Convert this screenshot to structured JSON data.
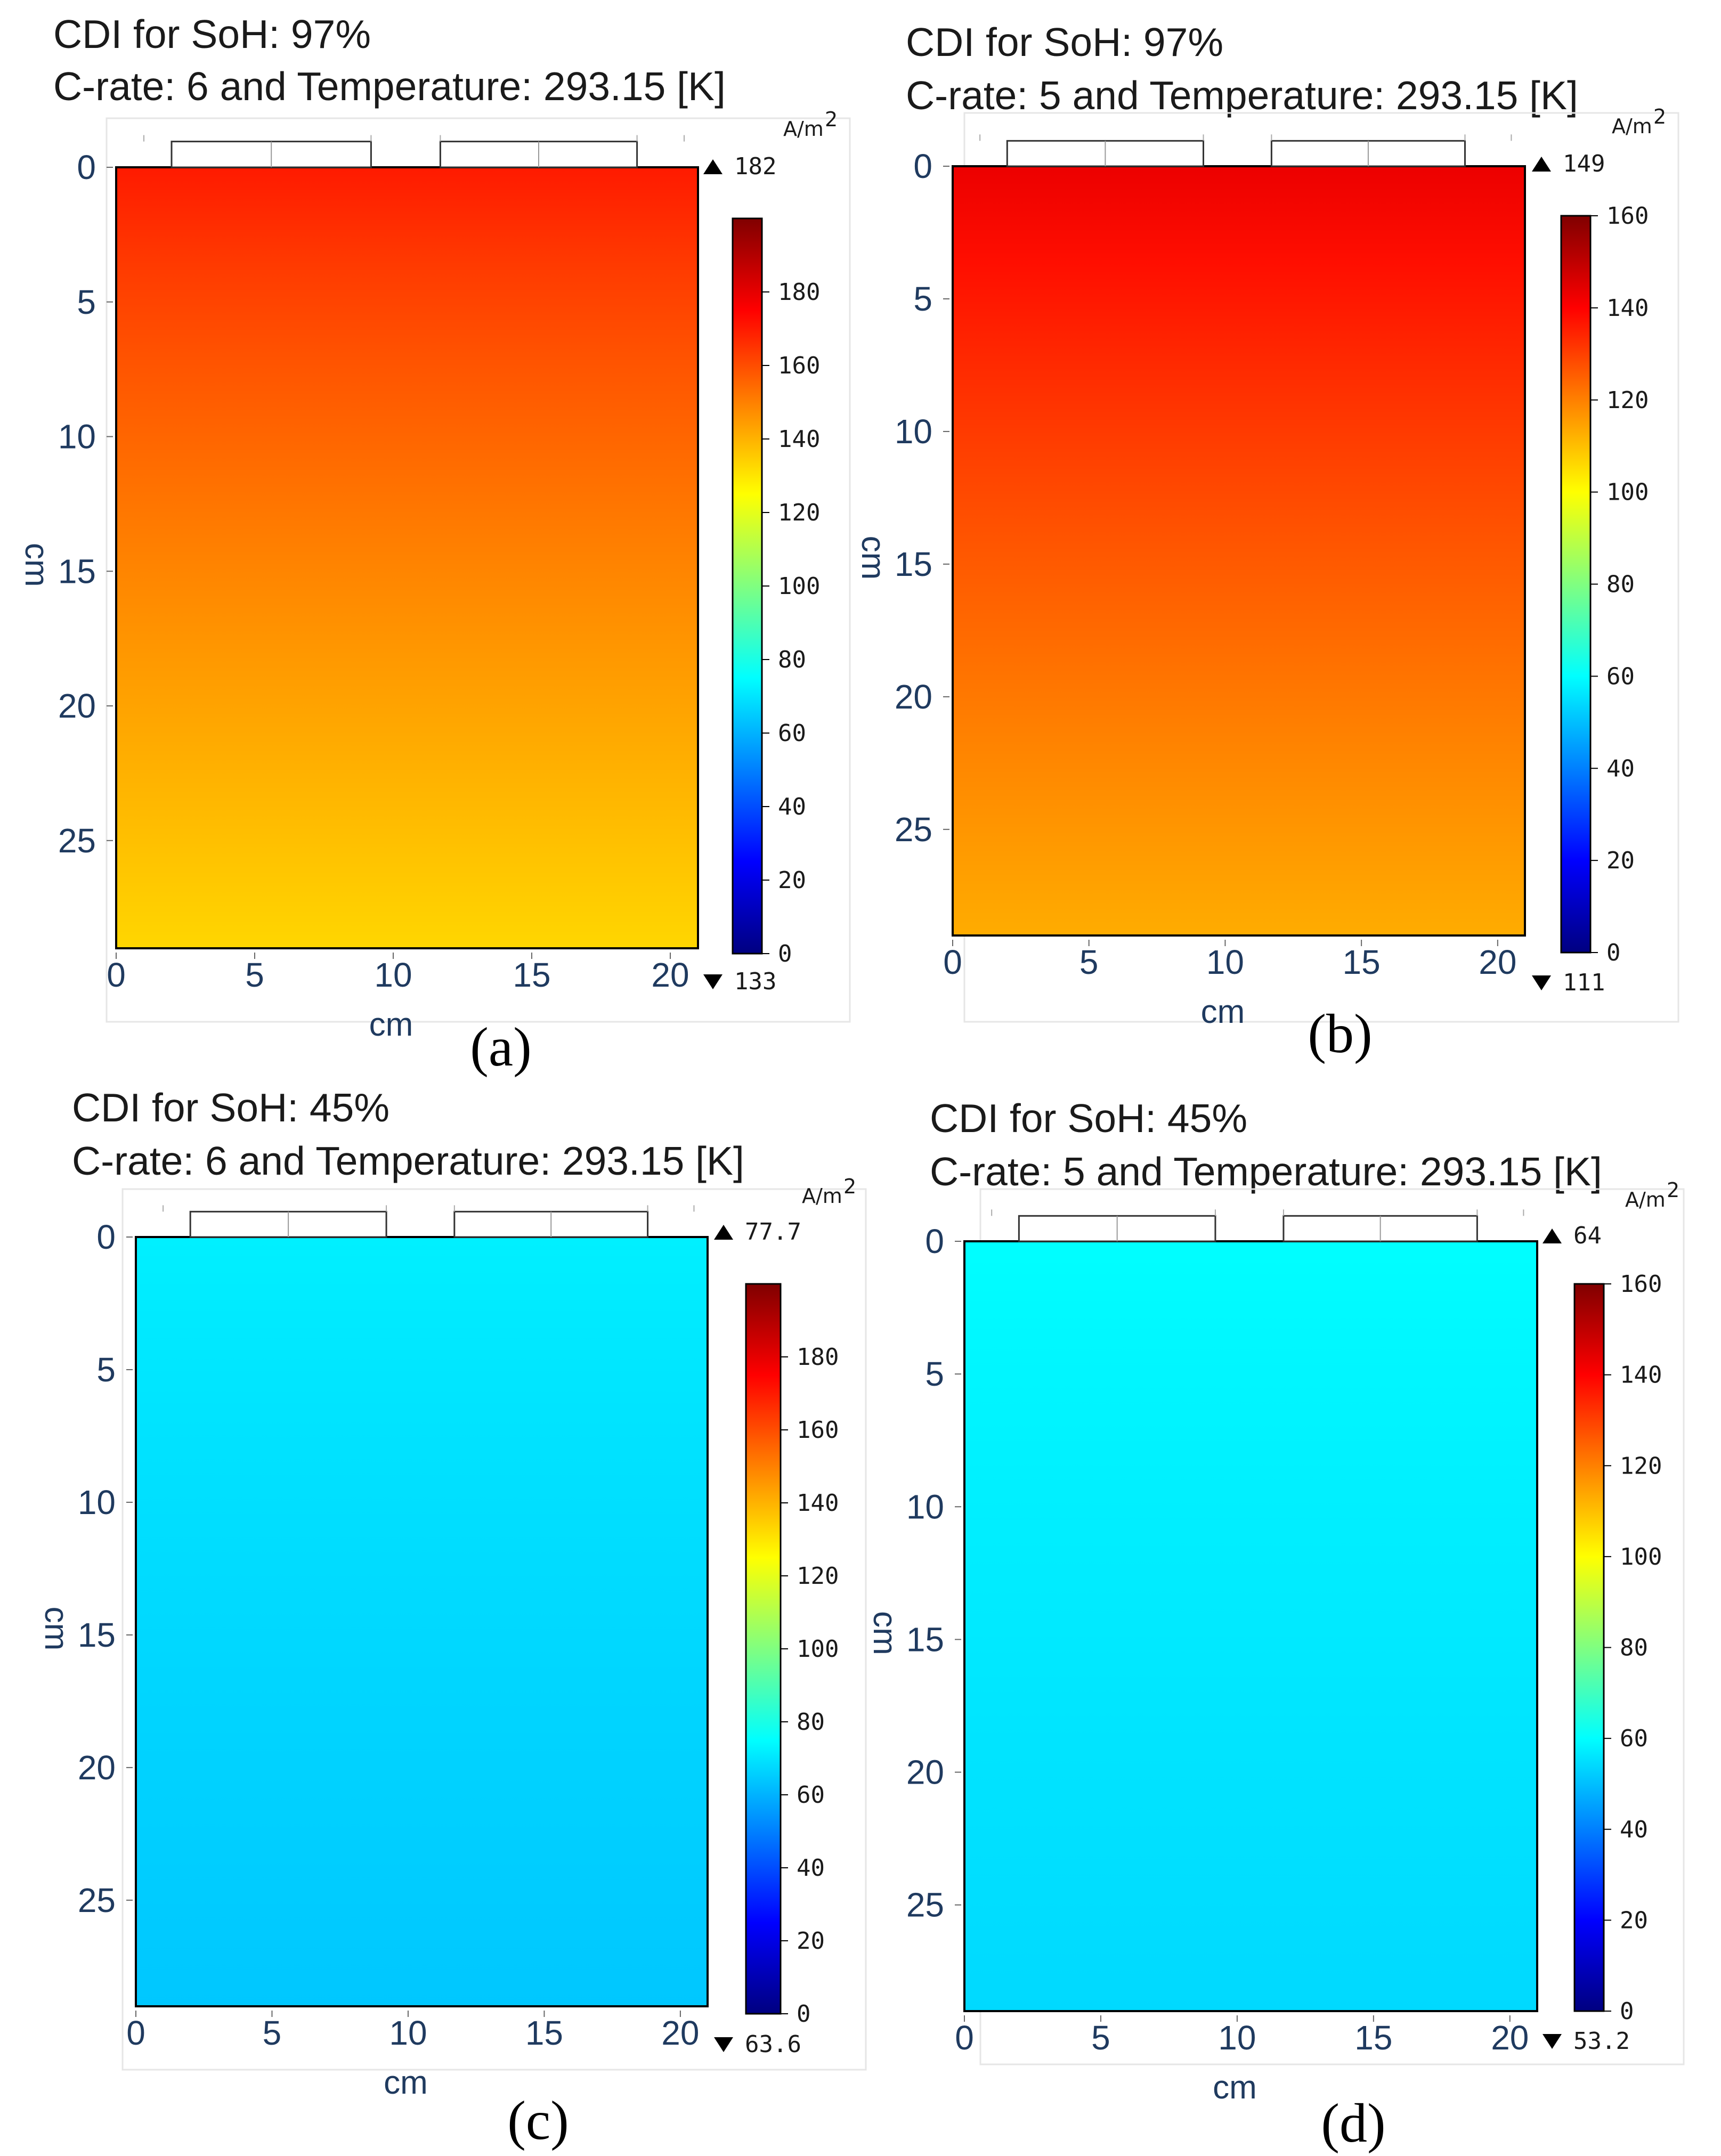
{
  "chart_data": [
    {
      "type": "heatmap",
      "panel_label": "(a)",
      "title_line1": "CDI for SoH: 97%",
      "title_line2": "C-rate: 6 and Temperature: 293.15 [K]",
      "xlabel": "cm",
      "ylabel": "cm",
      "x_ticks": [
        "0",
        "5",
        "10",
        "15",
        "20"
      ],
      "y_ticks": [
        "0",
        "5",
        "10",
        "15",
        "20",
        "25"
      ],
      "xlim": [
        -0.7,
        21.6
      ],
      "ylim": [
        -0.8,
        29.3
      ],
      "domain_x": [
        0,
        21
      ],
      "domain_y": [
        0,
        29
      ],
      "colorbar_unit": "A/m",
      "colorbar_unit_exp": "2",
      "colorbar_range": [
        0,
        200
      ],
      "colorbar_ticks": [
        "0",
        "20",
        "40",
        "60",
        "80",
        "100",
        "120",
        "140",
        "160",
        "180"
      ],
      "max_label": "182",
      "min_label": "133",
      "value_top": 170,
      "value_bottom": 133,
      "hotspot_value": 182,
      "hotspot_x": 13
    },
    {
      "type": "heatmap",
      "panel_label": "(b)",
      "title_line1": "CDI for SoH: 97%",
      "title_line2": "C-rate: 5 and Temperature: 293.15 [K]",
      "xlabel": "cm",
      "ylabel": "cm",
      "x_ticks": [
        "0",
        "5",
        "10",
        "15",
        "20"
      ],
      "y_ticks": [
        "0",
        "5",
        "10",
        "15",
        "20",
        "25"
      ],
      "xlim": [
        -0.7,
        21.6
      ],
      "ylim": [
        -0.8,
        29.3
      ],
      "domain_x": [
        0,
        21
      ],
      "domain_y": [
        0,
        29
      ],
      "colorbar_unit": "A/m",
      "colorbar_unit_exp": "2",
      "colorbar_range": [
        0,
        160
      ],
      "colorbar_ticks": [
        "0",
        "20",
        "40",
        "60",
        "80",
        "100",
        "120",
        "140",
        "160"
      ],
      "max_label": "149",
      "min_label": "111",
      "value_top": 143,
      "value_bottom": 113,
      "hotspot_value": 149,
      "hotspot_x": 11
    },
    {
      "type": "heatmap",
      "panel_label": "(c)",
      "title_line1": "CDI for SoH: 45%",
      "title_line2": "C-rate: 6 and Temperature: 293.15 [K]",
      "xlabel": "cm",
      "ylabel": "cm",
      "x_ticks": [
        "0",
        "5",
        "10",
        "15",
        "20"
      ],
      "y_ticks": [
        "0",
        "5",
        "10",
        "15",
        "20",
        "25"
      ],
      "xlim": [
        -0.7,
        21.6
      ],
      "ylim": [
        -0.8,
        29.3
      ],
      "domain_x": [
        0,
        21
      ],
      "domain_y": [
        0,
        29
      ],
      "colorbar_unit": "A/m",
      "colorbar_unit_exp": "2",
      "colorbar_range": [
        0,
        200
      ],
      "colorbar_ticks": [
        "0",
        "20",
        "40",
        "60",
        "80",
        "100",
        "120",
        "140",
        "160",
        "180"
      ],
      "max_label": "77.7",
      "min_label": "63.6",
      "value_top": 72,
      "value_bottom": 64,
      "hotspot_value": 77.7,
      "hotspot_x": 11
    },
    {
      "type": "heatmap",
      "panel_label": "(d)",
      "title_line1": "CDI for SoH: 45%",
      "title_line2": "C-rate: 5 and Temperature: 293.15 [K]",
      "xlabel": "cm",
      "ylabel": "cm",
      "x_ticks": [
        "0",
        "5",
        "10",
        "15",
        "20"
      ],
      "y_ticks": [
        "0",
        "5",
        "10",
        "15",
        "20",
        "25"
      ],
      "xlim": [
        -0.7,
        21.6
      ],
      "ylim": [
        -0.8,
        29.3
      ],
      "domain_x": [
        0,
        21
      ],
      "domain_y": [
        0,
        29
      ],
      "colorbar_unit": "A/m",
      "colorbar_unit_exp": "2",
      "colorbar_range": [
        0,
        160
      ],
      "colorbar_ticks": [
        "0",
        "20",
        "40",
        "60",
        "80",
        "100",
        "120",
        "140",
        "160"
      ],
      "max_label": "64",
      "min_label": "53.2",
      "value_top": 60,
      "value_bottom": 54,
      "hotspot_value": 64,
      "hotspot_x": 11
    }
  ]
}
